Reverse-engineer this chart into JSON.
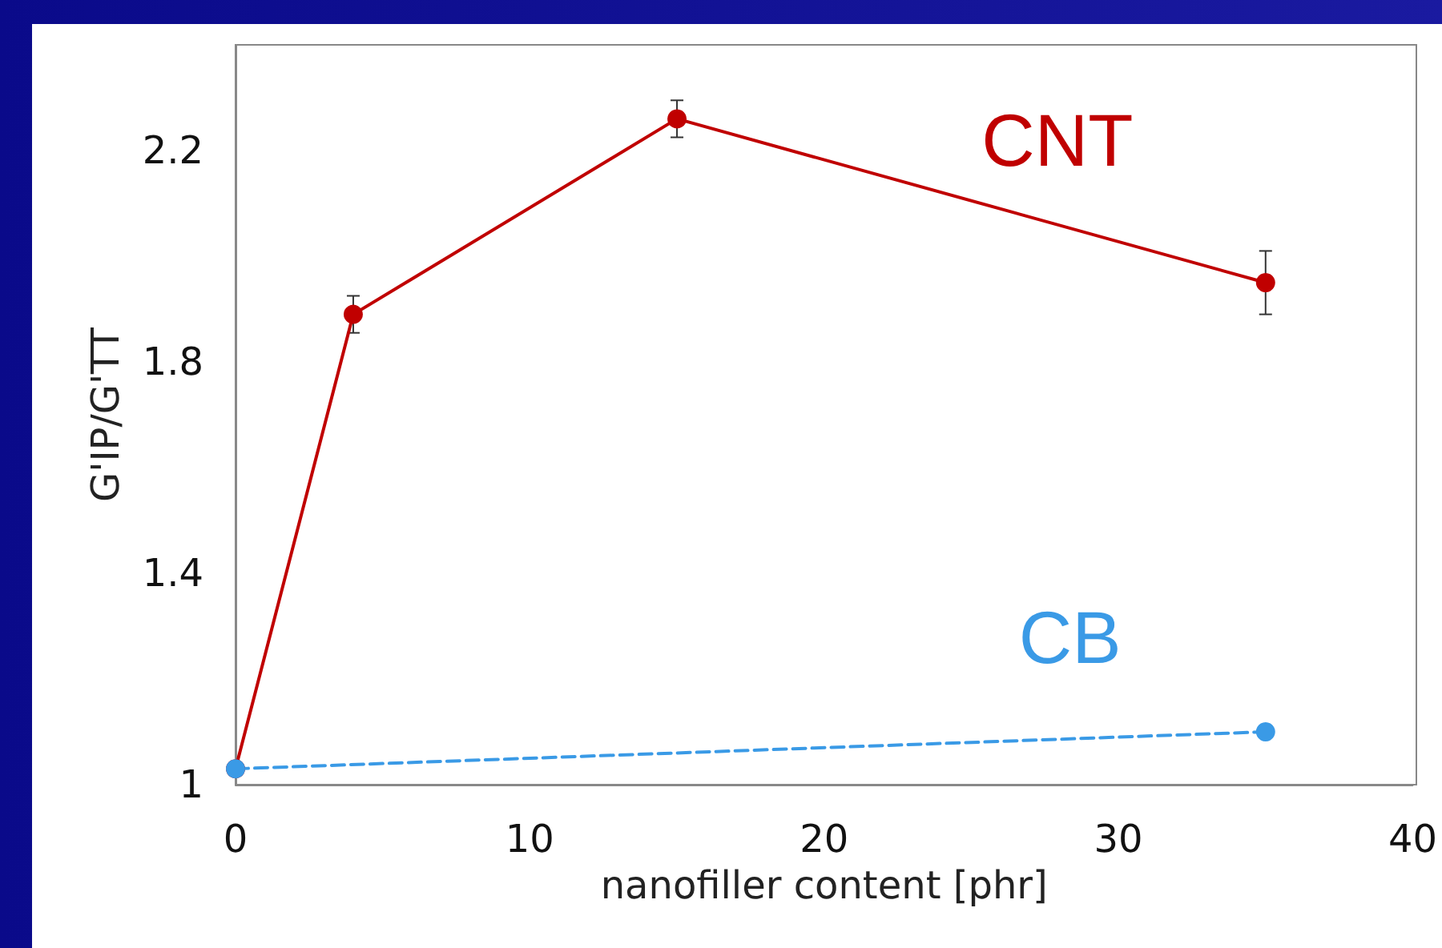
{
  "chart_data": {
    "type": "line",
    "xlabel": "nanofiller content [phr]",
    "ylabel": "G'IP/G'TT",
    "x": [
      0,
      4,
      15,
      35
    ],
    "series": [
      {
        "name": "CNT",
        "color": "#c00000",
        "values": [
          1.03,
          1.89,
          2.26,
          1.95
        ],
        "errors": [
          null,
          0.035,
          0.035,
          0.06
        ],
        "line_style": "solid"
      },
      {
        "name": "CB",
        "color": "#3a9ae6",
        "x": [
          0,
          35
        ],
        "values": [
          1.03,
          1.1
        ],
        "line_style": "dashed"
      }
    ],
    "xlim": [
      0,
      40
    ],
    "xticks": [
      0,
      10,
      20,
      30,
      40
    ],
    "ylim": [
      1,
      2.4
    ],
    "yticks": [
      1,
      1.4,
      1.8,
      2.2
    ],
    "grid": false,
    "legend": false,
    "marker": "circle"
  }
}
